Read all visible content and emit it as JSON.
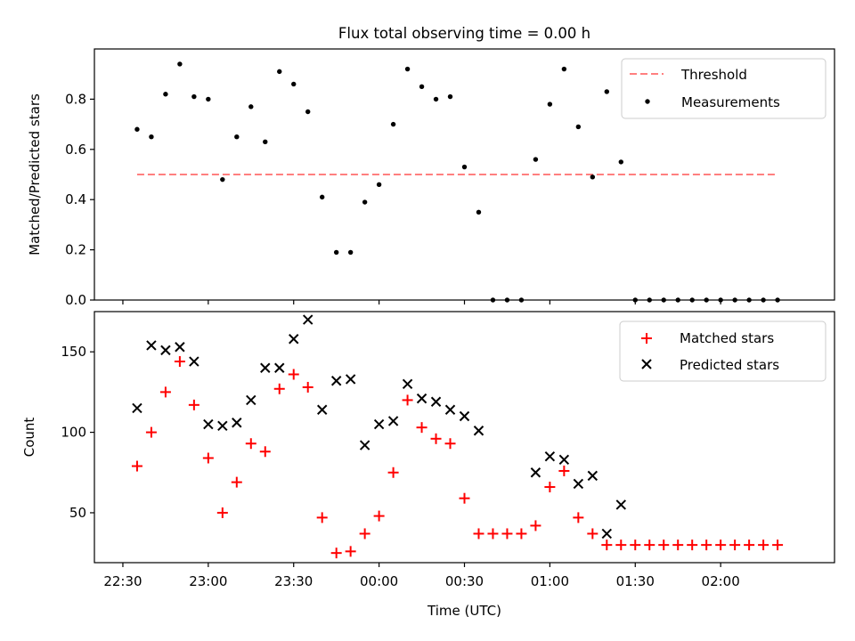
{
  "figure": {
    "title": "Flux total observing time = 0.00 h"
  },
  "chart_data": [
    {
      "type": "scatter",
      "title": "Flux total observing time = 0.00 h",
      "xlabel": "",
      "ylabel": "Matched/Predicted stars",
      "x_axis": "time",
      "xlim": [
        "22:20",
        "02:40"
      ],
      "ylim": [
        0,
        1.0
      ],
      "yticks": [
        0.0,
        0.2,
        0.4,
        0.6,
        0.8
      ],
      "ytick_labels": [
        "0.0",
        "0.2",
        "0.4",
        "0.6",
        "0.8"
      ],
      "grid": false,
      "legend_position": "top-right",
      "threshold": {
        "name": "Threshold",
        "value": 0.5,
        "x_range": [
          "22:35",
          "02:20"
        ],
        "color": "#ff7f7f",
        "style": "dashed"
      },
      "series": [
        {
          "name": "Measurements",
          "marker": "dot",
          "color": "#000000",
          "x": [
            "22:35",
            "22:40",
            "22:45",
            "22:50",
            "22:55",
            "23:00",
            "23:05",
            "23:10",
            "23:15",
            "23:20",
            "23:25",
            "23:30",
            "23:35",
            "23:40",
            "23:45",
            "23:50",
            "23:55",
            "00:00",
            "00:05",
            "00:10",
            "00:15",
            "00:20",
            "00:25",
            "00:30",
            "00:35",
            "00:40",
            "00:45",
            "00:50",
            "00:55",
            "01:00",
            "01:05",
            "01:10",
            "01:15",
            "01:20",
            "01:25",
            "01:30",
            "01:35",
            "01:40",
            "01:45",
            "01:50",
            "01:55",
            "02:00",
            "02:05",
            "02:10",
            "02:15",
            "02:20"
          ],
          "y": [
            0.68,
            0.65,
            0.82,
            0.94,
            0.81,
            0.8,
            0.48,
            0.65,
            0.77,
            0.63,
            0.91,
            0.86,
            0.75,
            0.41,
            0.19,
            0.19,
            0.39,
            0.46,
            0.7,
            0.92,
            0.85,
            0.8,
            0.81,
            0.53,
            0.35,
            0.0,
            0.0,
            0.0,
            0.56,
            0.78,
            0.92,
            0.69,
            0.49,
            0.83,
            0.55,
            0.0,
            0.0,
            0.0,
            0.0,
            0.0,
            0.0,
            0.0,
            0.0,
            0.0,
            0.0,
            0.0
          ]
        }
      ]
    },
    {
      "type": "scatter",
      "title": "",
      "xlabel": "Time (UTC)",
      "ylabel": "Count",
      "x_axis": "time",
      "xlim": [
        "22:20",
        "02:40"
      ],
      "ylim": [
        19,
        175
      ],
      "xticks": [
        "22:30",
        "23:00",
        "23:30",
        "00:00",
        "00:30",
        "01:00",
        "01:30",
        "02:00"
      ],
      "xtick_labels": [
        "22:30",
        "23:00",
        "23:30",
        "00:00",
        "00:30",
        "01:00",
        "01:30",
        "02:00"
      ],
      "yticks": [
        50,
        100,
        150
      ],
      "ytick_labels": [
        "50",
        "100",
        "150"
      ],
      "grid": false,
      "legend_position": "top-right",
      "series": [
        {
          "name": "Matched stars",
          "marker": "plus",
          "color": "#ff0000",
          "x": [
            "22:35",
            "22:40",
            "22:45",
            "22:50",
            "22:55",
            "23:00",
            "23:05",
            "23:10",
            "23:15",
            "23:20",
            "23:25",
            "23:30",
            "23:35",
            "23:40",
            "23:45",
            "23:50",
            "23:55",
            "00:00",
            "00:05",
            "00:10",
            "00:15",
            "00:20",
            "00:25",
            "00:30",
            "00:35",
            "00:40",
            "00:45",
            "00:50",
            "00:55",
            "01:00",
            "01:05",
            "01:10",
            "01:15",
            "01:20",
            "01:25",
            "01:30",
            "01:35",
            "01:40",
            "01:45",
            "01:50",
            "01:55",
            "02:00",
            "02:05",
            "02:10",
            "02:15",
            "02:20"
          ],
          "y": [
            79,
            100,
            125,
            144,
            117,
            84,
            50,
            69,
            93,
            88,
            127,
            136,
            128,
            47,
            25,
            26,
            37,
            48,
            75,
            120,
            103,
            96,
            93,
            59,
            37,
            37,
            37,
            37,
            42,
            66,
            76,
            47,
            37,
            30,
            30,
            30,
            30,
            30,
            30,
            30,
            30,
            30,
            30,
            30,
            30,
            30
          ]
        },
        {
          "name": "Predicted stars",
          "marker": "x",
          "color": "#000000",
          "x": [
            "22:35",
            "22:40",
            "22:45",
            "22:50",
            "22:55",
            "23:00",
            "23:05",
            "23:10",
            "23:15",
            "23:20",
            "23:25",
            "23:30",
            "23:35",
            "23:40",
            "23:45",
            "23:50",
            "23:55",
            "00:00",
            "00:05",
            "00:10",
            "00:15",
            "00:20",
            "00:25",
            "00:30",
            "00:35",
            "00:55",
            "01:00",
            "01:05",
            "01:10",
            "01:15",
            "01:20",
            "01:25"
          ],
          "y": [
            115,
            154,
            151,
            153,
            144,
            105,
            104,
            106,
            120,
            140,
            140,
            158,
            170,
            114,
            132,
            133,
            92,
            105,
            107,
            130,
            121,
            119,
            114,
            110,
            101,
            75,
            85,
            83,
            68,
            73,
            37,
            55
          ]
        }
      ]
    }
  ]
}
